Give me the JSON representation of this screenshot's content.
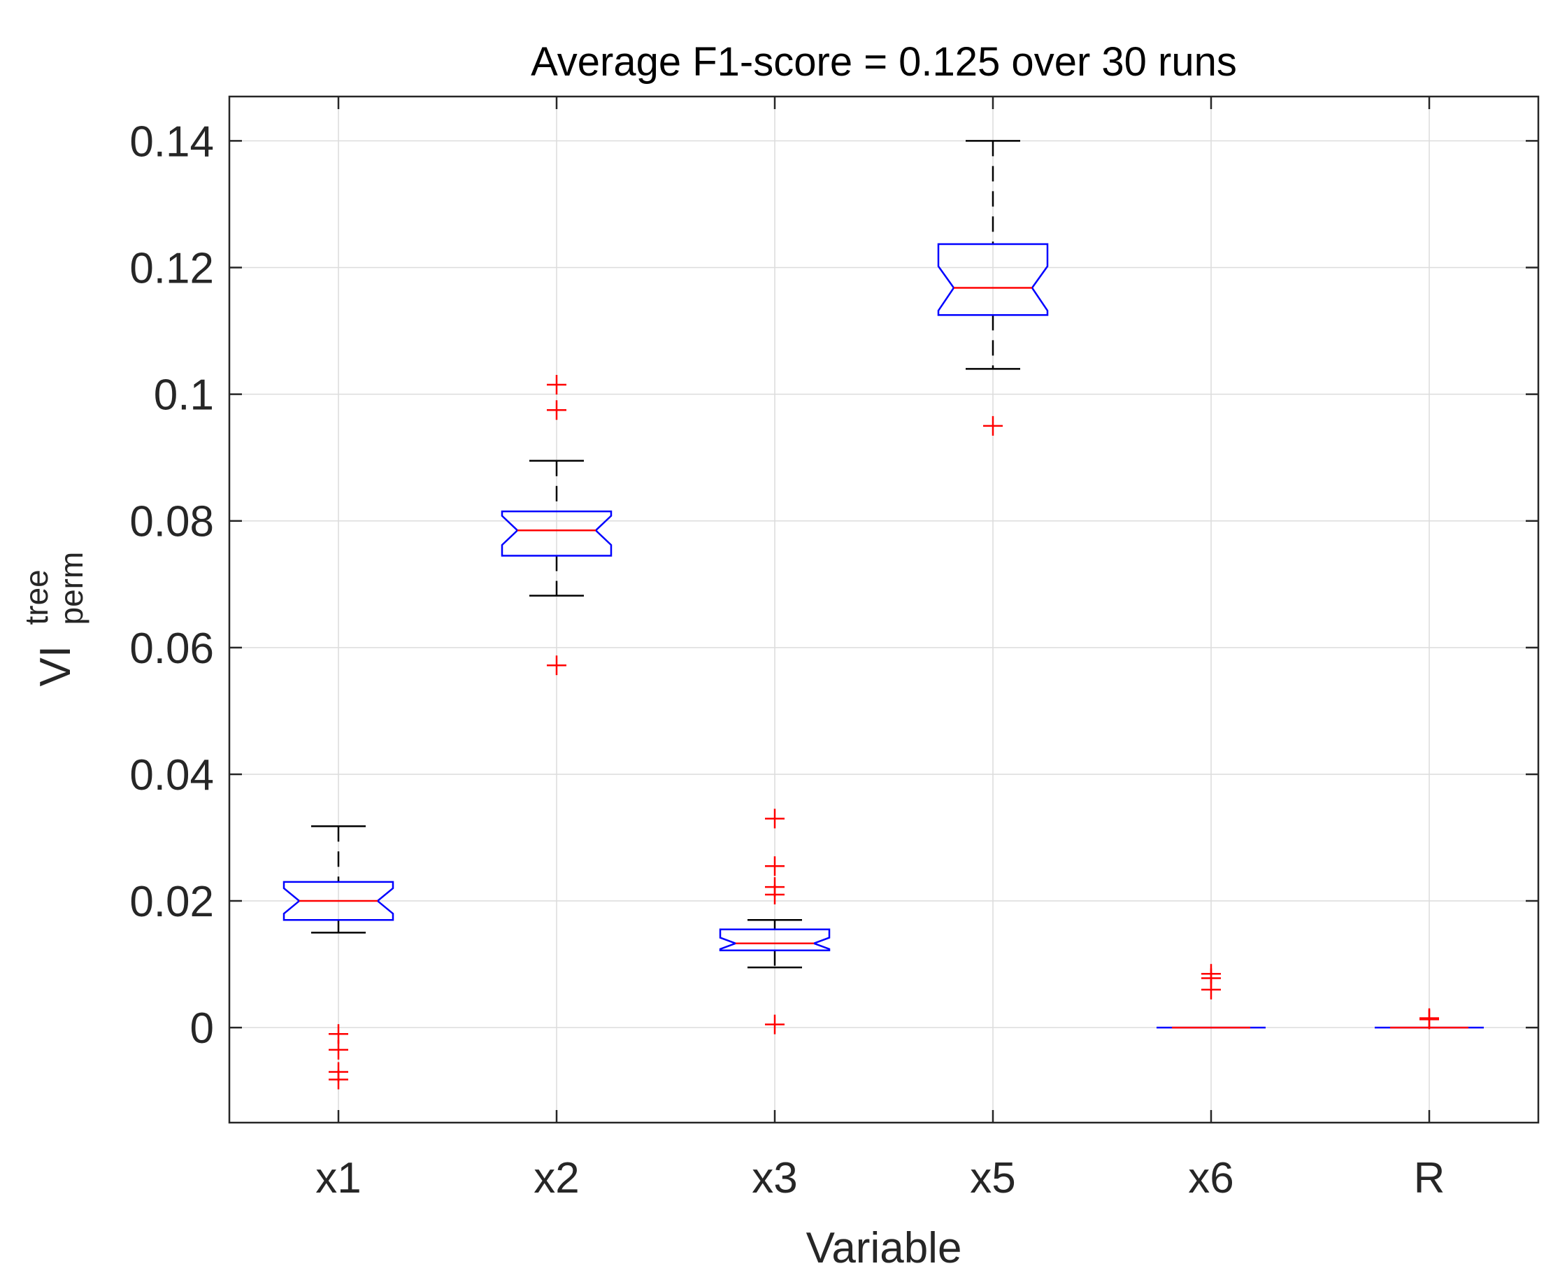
{
  "chart_data": {
    "type": "boxplot",
    "title": "Average F1-score = 0.125 over 30 runs",
    "xlabel": "Variable",
    "ylabel": {
      "main": "VI",
      "superscript": "tree",
      "subscript": "perm"
    },
    "ylim": [
      -0.015,
      0.147
    ],
    "yticks": [
      0,
      0.02,
      0.04,
      0.06,
      0.08,
      0.1,
      0.12,
      0.14
    ],
    "ytick_labels": [
      "0",
      "0.02",
      "0.04",
      "0.06",
      "0.08",
      "0.1",
      "0.12",
      "0.14"
    ],
    "grid": true,
    "notched": true,
    "categories": [
      "x1",
      "x2",
      "x3",
      "x5",
      "x6",
      "R"
    ],
    "boxes": [
      {
        "name": "x1",
        "whisker_low": 0.015,
        "q1": 0.017,
        "median": 0.02,
        "q3": 0.023,
        "whisker_high": 0.0318,
        "notch_low": 0.018,
        "notch_high": 0.022,
        "outliers": [
          -0.001,
          -0.0035,
          -0.007,
          -0.0082
        ]
      },
      {
        "name": "x2",
        "whisker_low": 0.0682,
        "q1": 0.0745,
        "median": 0.0785,
        "q3": 0.0815,
        "whisker_high": 0.0895,
        "notch_low": 0.0762,
        "notch_high": 0.0808,
        "outliers": [
          0.0572,
          0.0975,
          0.1015
        ]
      },
      {
        "name": "x3",
        "whisker_low": 0.0095,
        "q1": 0.0122,
        "median": 0.0133,
        "q3": 0.0155,
        "whisker_high": 0.017,
        "notch_low": 0.0124,
        "notch_high": 0.0142,
        "outliers": [
          0.0005,
          0.021,
          0.0222,
          0.0255,
          0.033
        ]
      },
      {
        "name": "x5",
        "whisker_low": 0.104,
        "q1": 0.1125,
        "median": 0.1168,
        "q3": 0.1237,
        "whisker_high": 0.14,
        "notch_low": 0.1132,
        "notch_high": 0.1202,
        "outliers": [
          0.095
        ]
      },
      {
        "name": "x6",
        "whisker_low": 0,
        "q1": 0,
        "median": 0,
        "q3": 0,
        "whisker_high": 0,
        "notch_low": 0,
        "notch_high": 0,
        "outliers": [
          0.006,
          0.0078,
          0.0085
        ]
      },
      {
        "name": "R",
        "whisker_low": 0,
        "q1": 0,
        "median": 0,
        "q3": 0,
        "whisker_high": 0,
        "notch_low": 0,
        "notch_high": 0,
        "outliers": [
          0.0013,
          0.0015
        ]
      }
    ],
    "colors": {
      "box": "#0000ff",
      "median": "#ff0000",
      "whisker": "#000000",
      "outlier": "#ff0000",
      "grid": "#dcdcdc",
      "axis": "#262626"
    }
  }
}
